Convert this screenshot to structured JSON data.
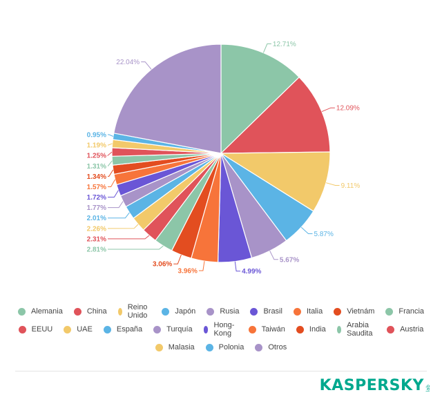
{
  "chart_data": {
    "type": "pie",
    "start_angle_deg": 0,
    "direction": "clockwise",
    "legend_position": "bottom",
    "slices": [
      {
        "label": "Alemania",
        "value": 12.71,
        "value_label": "12.71%",
        "color": "#8cc6a8"
      },
      {
        "label": "China",
        "value": 12.09,
        "value_label": "12.09%",
        "color": "#e0535a"
      },
      {
        "label": "Reino Unido",
        "value": 9.11,
        "value_label": "9.11%",
        "color": "#f2c96a"
      },
      {
        "label": "Japón",
        "value": 5.87,
        "value_label": "5.87%",
        "color": "#5bb4e5"
      },
      {
        "label": "Rusia",
        "value": 5.67,
        "value_label": "5.67%",
        "color": "#a893c8"
      },
      {
        "label": "Brasil",
        "value": 4.99,
        "value_label": "4.99%",
        "color": "#6a56d6"
      },
      {
        "label": "Italia",
        "value": 3.96,
        "value_label": "3.96%",
        "color": "#f7743a"
      },
      {
        "label": "Vietnám",
        "value": 3.06,
        "value_label": "3.06%",
        "color": "#e34d20"
      },
      {
        "label": "Francia",
        "value": 2.81,
        "value_label": "2.81%",
        "color": "#8cc6a8"
      },
      {
        "label": "EEUU",
        "value": 2.31,
        "value_label": "2.31%",
        "color": "#e0535a"
      },
      {
        "label": "UAE",
        "value": 2.26,
        "value_label": "2.26%",
        "color": "#f2c96a"
      },
      {
        "label": "España",
        "value": 2.01,
        "value_label": "2.01%",
        "color": "#5bb4e5"
      },
      {
        "label": "Turquía",
        "value": 1.77,
        "value_label": "1.77%",
        "color": "#a893c8"
      },
      {
        "label": "Hong-Kong",
        "value": 1.72,
        "value_label": "1.72%",
        "color": "#6a56d6"
      },
      {
        "label": "Taiwán",
        "value": 1.57,
        "value_label": "1.57%",
        "color": "#f7743a"
      },
      {
        "label": "India",
        "value": 1.34,
        "value_label": "1.34%",
        "color": "#e34d20"
      },
      {
        "label": "Arabia Saudita",
        "value": 1.31,
        "value_label": "1.31%",
        "color": "#8cc6a8"
      },
      {
        "label": "Austria",
        "value": 1.25,
        "value_label": "1.25%",
        "color": "#e0535a"
      },
      {
        "label": "Malasia",
        "value": 1.19,
        "value_label": "1.19%",
        "color": "#f2c96a"
      },
      {
        "label": "Polonia",
        "value": 0.95,
        "value_label": "0.95%",
        "color": "#5bb4e5"
      },
      {
        "label": "Otros",
        "value": 22.04,
        "value_label": "22.04%",
        "color": "#a893c8"
      }
    ]
  },
  "branding": {
    "logo_text": "KASPERSKY",
    "logo_suffix": "lab",
    "color": "#00a88e"
  }
}
